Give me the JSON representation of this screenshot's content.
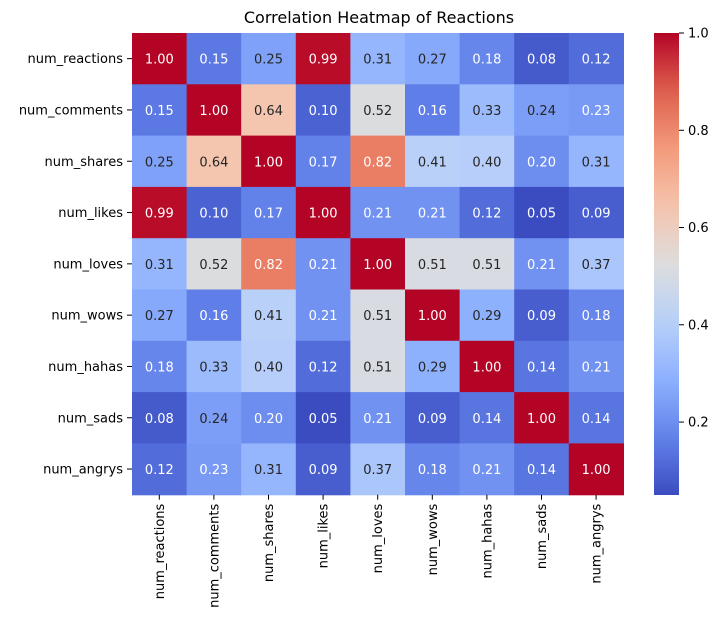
{
  "chart_data": {
    "type": "heatmap",
    "title": "Correlation Heatmap of Reactions",
    "xlabel": "",
    "ylabel": "",
    "rows": [
      "num_reactions",
      "num_comments",
      "num_shares",
      "num_likes",
      "num_loves",
      "num_wows",
      "num_hahas",
      "num_sads",
      "num_angrys"
    ],
    "columns": [
      "num_reactions",
      "num_comments",
      "num_shares",
      "num_likes",
      "num_loves",
      "num_wows",
      "num_hahas",
      "num_sads",
      "num_angrys"
    ],
    "values": [
      [
        1.0,
        0.15,
        0.25,
        0.99,
        0.31,
        0.27,
        0.18,
        0.08,
        0.12
      ],
      [
        0.15,
        1.0,
        0.64,
        0.1,
        0.52,
        0.16,
        0.33,
        0.24,
        0.23
      ],
      [
        0.25,
        0.64,
        1.0,
        0.17,
        0.82,
        0.41,
        0.4,
        0.2,
        0.31
      ],
      [
        0.99,
        0.1,
        0.17,
        1.0,
        0.21,
        0.21,
        0.12,
        0.05,
        0.09
      ],
      [
        0.31,
        0.52,
        0.82,
        0.21,
        1.0,
        0.51,
        0.51,
        0.21,
        0.37
      ],
      [
        0.27,
        0.16,
        0.41,
        0.21,
        0.51,
        1.0,
        0.29,
        0.09,
        0.18
      ],
      [
        0.18,
        0.33,
        0.4,
        0.12,
        0.51,
        0.29,
        1.0,
        0.14,
        0.21
      ],
      [
        0.08,
        0.24,
        0.2,
        0.05,
        0.21,
        0.09,
        0.14,
        1.0,
        0.14
      ],
      [
        0.12,
        0.23,
        0.31,
        0.09,
        0.37,
        0.18,
        0.21,
        0.14,
        1.0
      ]
    ],
    "annotation_format": "0.00",
    "colormap": "coolwarm",
    "color_range": [
      0.05,
      1.0
    ],
    "colorbar_ticks": [
      "0.2",
      "0.4",
      "0.6",
      "0.8",
      "1.0"
    ],
    "colorbar_tick_values": [
      0.2,
      0.4,
      0.6,
      0.8,
      1.0
    ],
    "grid": false
  }
}
